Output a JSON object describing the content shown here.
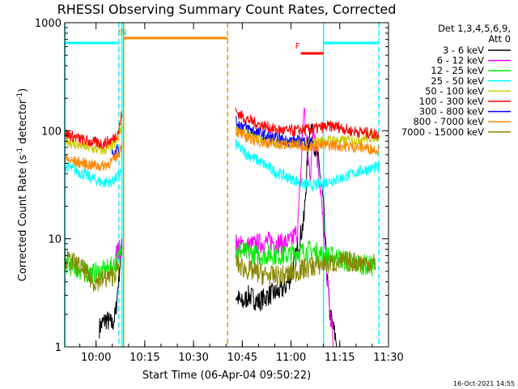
{
  "chart_data": {
    "type": "line",
    "title": "RHESSI Observing Summary Count Rates, Corrected",
    "xlabel": "Start Time (06-Apr-04 09:50:22)",
    "ylabel": "Corrected Count Rate (s^-1 detector^-1)",
    "y_scale": "log",
    "ylim": [
      1,
      1000
    ],
    "xlim": [
      "09:50:22",
      "11:30:00"
    ],
    "x_ticks": [
      "10:00",
      "10:15",
      "10:30",
      "10:45",
      "11:00",
      "11:15",
      "11:30"
    ],
    "y_ticks": [
      "1",
      "10",
      "100",
      "1000"
    ],
    "legend_header": [
      "Det 1,3,4,5,6,9,",
      "Att 0"
    ],
    "legend_position": "right",
    "timestamp": "16-Oct-2021 14:55",
    "series": [
      {
        "name": "3 - 6 keV",
        "color": "#000000",
        "segments": [
          [
            [
              "10:01",
              1.5
            ],
            [
              "10:03",
              1.8
            ],
            [
              "10:05",
              1.6
            ],
            [
              "10:06",
              2.0
            ],
            [
              "10:07",
              4.5
            ],
            [
              "10:08",
              9.0
            ]
          ],
          [
            [
              "10:43",
              3.0
            ],
            [
              "10:45",
              2.5
            ],
            [
              "10:47",
              3.0
            ],
            [
              "10:50",
              2.6
            ],
            [
              "10:53",
              3.0
            ],
            [
              "10:56",
              3.2
            ],
            [
              "10:58",
              3.5
            ],
            [
              "11:00",
              4.5
            ],
            [
              "11:02",
              8.0
            ],
            [
              "11:04",
              15
            ],
            [
              "11:05",
              50
            ],
            [
              "11:06",
              120
            ],
            [
              "11:07",
              80
            ],
            [
              "11:08",
              60
            ],
            [
              "11:09",
              40
            ],
            [
              "11:10",
              20
            ],
            [
              "11:11",
              5
            ],
            [
              "11:12",
              2
            ],
            [
              "11:13",
              1.5
            ],
            [
              "11:14",
              1.1
            ]
          ]
        ]
      },
      {
        "name": "6 - 12 keV",
        "color": "#ff00ff",
        "segments": [
          [
            [
              "10:06",
              7.0
            ],
            [
              "10:07",
              8.0
            ],
            [
              "10:08",
              8.5
            ]
          ],
          [
            [
              "10:43",
              9.0
            ],
            [
              "10:46",
              8.5
            ],
            [
              "10:50",
              9.0
            ],
            [
              "10:54",
              9.5
            ],
            [
              "10:57",
              9.0
            ],
            [
              "11:00",
              9.5
            ],
            [
              "11:02",
              12
            ],
            [
              "11:03",
              40
            ],
            [
              "11:04",
              170
            ],
            [
              "11:05",
              60
            ],
            [
              "11:06",
              40
            ],
            [
              "11:07",
              120
            ],
            [
              "11:08",
              60
            ],
            [
              "11:09",
              30
            ],
            [
              "11:10",
              12
            ],
            [
              "11:11",
              5
            ],
            [
              "11:12",
              2
            ],
            [
              "11:13",
              1.2
            ]
          ]
        ]
      },
      {
        "name": "12 - 25 keV",
        "color": "#00ee00",
        "segments": [
          [
            [
              "09:50:22",
              6.0
            ],
            [
              "09:53",
              5.5
            ],
            [
              "09:56",
              5.0
            ],
            [
              "09:59",
              4.8
            ],
            [
              "10:02",
              5.0
            ],
            [
              "10:05",
              5.5
            ],
            [
              "10:07",
              6.5
            ],
            [
              "10:08",
              10
            ]
          ],
          [
            [
              "10:43",
              8.0
            ],
            [
              "10:46",
              7.5
            ],
            [
              "10:50",
              7.0
            ],
            [
              "10:54",
              7.2
            ],
            [
              "10:58",
              7.0
            ],
            [
              "11:02",
              7.5
            ],
            [
              "11:06",
              7.8
            ],
            [
              "11:10",
              7.0
            ],
            [
              "11:14",
              6.8
            ],
            [
              "11:18",
              6.0
            ],
            [
              "11:22",
              5.8
            ],
            [
              "11:26",
              5.5
            ]
          ]
        ]
      },
      {
        "name": "25 - 50 keV",
        "color": "#00ffff",
        "segments": [
          [
            [
              "09:50:22",
              48
            ],
            [
              "09:53",
              44
            ],
            [
              "09:56",
              40
            ],
            [
              "09:59",
              36
            ],
            [
              "10:02",
              33
            ],
            [
              "10:05",
              34
            ],
            [
              "10:07",
              38
            ],
            [
              "10:08",
              45
            ]
          ],
          [
            [
              "10:43",
              75
            ],
            [
              "10:46",
              62
            ],
            [
              "10:49",
              55
            ],
            [
              "10:52",
              48
            ],
            [
              "10:55",
              42
            ],
            [
              "10:58",
              38
            ],
            [
              "11:01",
              35
            ],
            [
              "11:04",
              32
            ],
            [
              "11:07",
              31
            ],
            [
              "11:10",
              33
            ],
            [
              "11:13",
              35
            ],
            [
              "11:16",
              37
            ],
            [
              "11:19",
              40
            ],
            [
              "11:22",
              43
            ],
            [
              "11:25",
              45
            ],
            [
              "11:27",
              46
            ]
          ]
        ]
      },
      {
        "name": "50 - 100 keV",
        "color": "#cccc00",
        "segments": [
          [
            [
              "09:50:22",
              85
            ],
            [
              "09:53",
              75
            ],
            [
              "09:56",
              72
            ],
            [
              "09:59",
              68
            ],
            [
              "10:02",
              66
            ],
            [
              "10:05",
              70
            ],
            [
              "10:07",
              85
            ],
            [
              "10:08",
              120
            ]
          ],
          [
            [
              "10:43",
              110
            ],
            [
              "10:46",
              95
            ],
            [
              "10:49",
              88
            ],
            [
              "10:52",
              82
            ],
            [
              "10:55",
              78
            ],
            [
              "10:58",
              76
            ],
            [
              "11:01",
              76
            ],
            [
              "11:04",
              78
            ],
            [
              "11:07",
              77
            ],
            [
              "11:10",
              80
            ],
            [
              "11:13",
              82
            ],
            [
              "11:16",
              80
            ],
            [
              "11:19",
              82
            ],
            [
              "11:22",
              85
            ],
            [
              "11:25",
              88
            ],
            [
              "11:27",
              90
            ]
          ]
        ]
      },
      {
        "name": "100 - 300 keV",
        "color": "#ff0000",
        "segments": [
          [
            [
              "09:50:22",
              95
            ],
            [
              "09:53",
              88
            ],
            [
              "09:56",
              82
            ],
            [
              "09:59",
              78
            ],
            [
              "10:02",
              76
            ],
            [
              "10:05",
              82
            ],
            [
              "10:07",
              100
            ],
            [
              "10:08",
              150
            ]
          ],
          [
            [
              "10:43",
              150
            ],
            [
              "10:46",
              130
            ],
            [
              "10:49",
              118
            ],
            [
              "10:52",
              110
            ],
            [
              "10:55",
              103
            ],
            [
              "10:58",
              100
            ],
            [
              "11:01",
              100
            ],
            [
              "11:04",
              102
            ],
            [
              "11:07",
              104
            ],
            [
              "11:10",
              108
            ],
            [
              "11:13",
              110
            ],
            [
              "11:15",
              108
            ],
            [
              "11:18",
              100
            ],
            [
              "11:21",
              98
            ],
            [
              "11:24",
              95
            ],
            [
              "11:27",
              92
            ]
          ]
        ]
      },
      {
        "name": "300 - 800 keV",
        "color": "#0000ff",
        "segments": [
          [
            [
              "10:05",
              62
            ],
            [
              "10:07",
              70
            ]
          ],
          [
            [
              "10:43",
              120
            ],
            [
              "10:46",
              108
            ],
            [
              "10:49",
              98
            ],
            [
              "10:52",
              90
            ],
            [
              "10:55",
              85
            ],
            [
              "10:58",
              82
            ],
            [
              "11:01",
              80
            ],
            [
              "11:04",
              80
            ],
            [
              "11:07",
              78
            ]
          ]
        ]
      },
      {
        "name": "800 - 7000 keV",
        "color": "#ff8800",
        "segments": [
          [
            [
              "09:50:22",
              55
            ],
            [
              "09:53",
              52
            ],
            [
              "09:56",
              50
            ],
            [
              "09:59",
              48
            ],
            [
              "10:02",
              47
            ],
            [
              "10:05",
              52
            ],
            [
              "10:07",
              62
            ],
            [
              "10:08",
              75
            ]
          ],
          [
            [
              "10:43",
              100
            ],
            [
              "10:46",
              88
            ],
            [
              "10:49",
              82
            ],
            [
              "10:52",
              78
            ],
            [
              "10:55",
              76
            ],
            [
              "10:58",
              75
            ],
            [
              "11:01",
              74
            ],
            [
              "11:04",
              73
            ],
            [
              "11:07",
              72
            ],
            [
              "11:10",
              73
            ],
            [
              "11:13",
              74
            ],
            [
              "11:16",
              72
            ],
            [
              "11:19",
              71
            ],
            [
              "11:22",
              70
            ],
            [
              "11:25",
              68
            ],
            [
              "11:27",
              67
            ]
          ]
        ]
      },
      {
        "name": "7000 - 15000 keV",
        "color": "#888800",
        "segments": [
          [
            [
              "09:50:22",
              6.5
            ],
            [
              "09:53",
              6.0
            ],
            [
              "09:56",
              5.2
            ],
            [
              "09:59",
              4.0
            ],
            [
              "10:02",
              4.2
            ],
            [
              "10:05",
              4.5
            ],
            [
              "10:07",
              5.5
            ]
          ],
          [
            [
              "10:43",
              6.0
            ],
            [
              "10:46",
              5.2
            ],
            [
              "10:50",
              4.8
            ],
            [
              "10:54",
              4.5
            ],
            [
              "10:58",
              4.6
            ],
            [
              "11:02",
              5.0
            ],
            [
              "11:06",
              5.5
            ],
            [
              "11:10",
              5.8
            ],
            [
              "11:14",
              6.0
            ],
            [
              "11:18",
              6.2
            ],
            [
              "11:22",
              6.0
            ],
            [
              "11:26",
              5.9
            ]
          ]
        ]
      }
    ],
    "annotations": [
      {
        "label": "S",
        "x": "10:07:30",
        "color": "#cc8800"
      },
      {
        "label": "N",
        "x": "10:08:30",
        "color": "#00cccc"
      },
      {
        "label": "F",
        "x": "11:02",
        "color": "#ff0000"
      }
    ],
    "bars": [
      {
        "color": "#00ffff",
        "x0": "09:50:22",
        "x1": "10:07",
        "y": 650
      },
      {
        "color": "#ff8800",
        "x0": "10:08:30",
        "x1": "10:40:30",
        "y": 720
      },
      {
        "color": "#ff0000",
        "x0": "11:03",
        "x1": "11:10",
        "y": 520
      },
      {
        "color": "#00ffff",
        "x0": "11:10",
        "x1": "11:27",
        "y": 650
      }
    ],
    "vlines": [
      {
        "x": "09:50:22",
        "color": "#00ffff",
        "style": "solid"
      },
      {
        "x": "10:07",
        "color": "#00ffff",
        "style": "dashed"
      },
      {
        "x": "10:08",
        "color": "#00ffff",
        "style": "solid"
      },
      {
        "x": "10:08:30",
        "color": "#ff8800",
        "style": "solid"
      },
      {
        "x": "10:40:30",
        "color": "#ff8800",
        "style": "dashed"
      },
      {
        "x": "11:10",
        "color": "#00ffff",
        "style": "solid"
      },
      {
        "x": "11:27",
        "color": "#00ffff",
        "style": "dashed"
      }
    ]
  }
}
